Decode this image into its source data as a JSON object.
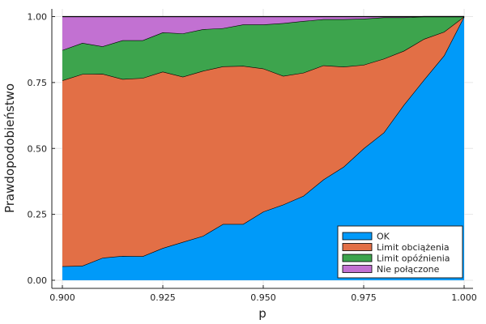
{
  "chart_data": {
    "type": "area",
    "stacked": true,
    "xlabel": "p",
    "ylabel": "Prawdopodobieństwo",
    "xlim": [
      0.9,
      1.0
    ],
    "ylim": [
      0.0,
      1.0
    ],
    "xticks": [
      0.9,
      0.925,
      0.95,
      0.975,
      1.0
    ],
    "xtick_labels": [
      "0.900",
      "0.925",
      "0.950",
      "0.975",
      "1.000"
    ],
    "yticks": [
      0.0,
      0.25,
      0.5,
      0.75,
      1.0
    ],
    "ytick_labels": [
      "0.00",
      "0.25",
      "0.50",
      "0.75",
      "1.00"
    ],
    "grid": true,
    "legend_position": "bottom-right",
    "x": [
      0.9,
      0.905,
      0.91,
      0.915,
      0.92,
      0.925,
      0.93,
      0.935,
      0.94,
      0.945,
      0.95,
      0.955,
      0.96,
      0.965,
      0.97,
      0.975,
      0.98,
      0.985,
      0.99,
      0.995,
      1.0
    ],
    "series": [
      {
        "name": "OK",
        "color": "#009af9",
        "values": [
          0.053,
          0.055,
          0.085,
          0.092,
          0.091,
          0.122,
          0.145,
          0.168,
          0.213,
          0.213,
          0.26,
          0.287,
          0.32,
          0.382,
          0.43,
          0.5,
          0.56,
          0.665,
          0.76,
          0.852,
          1.0
        ]
      },
      {
        "name": "Limit obciążenia",
        "color": "#e26f46",
        "values": [
          0.705,
          0.727,
          0.698,
          0.671,
          0.676,
          0.669,
          0.627,
          0.626,
          0.598,
          0.6,
          0.543,
          0.488,
          0.467,
          0.433,
          0.38,
          0.317,
          0.28,
          0.205,
          0.155,
          0.09,
          0.0
        ]
      },
      {
        "name": "Limit opóźnienia",
        "color": "#3da44d",
        "values": [
          0.115,
          0.118,
          0.104,
          0.147,
          0.143,
          0.149,
          0.164,
          0.158,
          0.145,
          0.157,
          0.167,
          0.2,
          0.196,
          0.175,
          0.18,
          0.175,
          0.157,
          0.127,
          0.085,
          0.058,
          0.0
        ]
      },
      {
        "name": "Nie połączone",
        "color": "#c271d2",
        "values": [
          0.127,
          0.1,
          0.113,
          0.09,
          0.09,
          0.06,
          0.064,
          0.048,
          0.044,
          0.03,
          0.03,
          0.025,
          0.017,
          0.01,
          0.01,
          0.008,
          0.003,
          0.003,
          0.0,
          0.0,
          0.0
        ]
      }
    ]
  }
}
